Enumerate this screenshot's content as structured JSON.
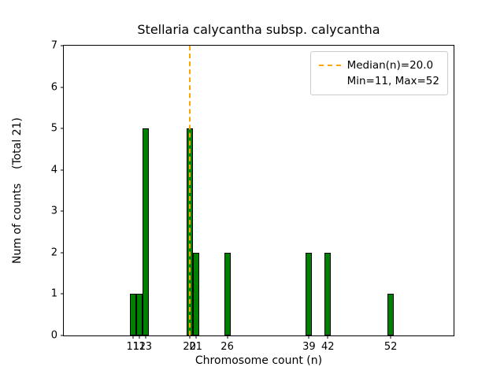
{
  "chart_data": {
    "type": "bar",
    "title": "Stellaria calycantha subsp. calycantha",
    "xlabel": "Chromosome count (n)",
    "ylabel": "Num of counts    (Total 21)",
    "x": [
      11,
      12,
      13,
      20,
      21,
      26,
      39,
      42,
      52
    ],
    "values": [
      1,
      1,
      5,
      5,
      2,
      2,
      2,
      2,
      1
    ],
    "bar_width": 1,
    "bar_color": "#008000",
    "bar_edge_color": "#000000",
    "xlim": [
      0,
      62
    ],
    "ylim": [
      0,
      7
    ],
    "xticks": [
      11,
      12,
      13,
      20,
      21,
      26,
      39,
      42,
      52
    ],
    "yticks": [
      0,
      1,
      2,
      3,
      4,
      5,
      6,
      7
    ],
    "grid": false,
    "median_line": {
      "x": 20.0,
      "color": "#ffa500",
      "style": "dashed"
    },
    "legend": {
      "position": "upper right",
      "entries": [
        {
          "label": "Median(n)=20.0",
          "marker": "dashed-line",
          "color": "#ffa500"
        },
        {
          "label": "Min=11, Max=52",
          "marker": "none"
        }
      ]
    }
  }
}
